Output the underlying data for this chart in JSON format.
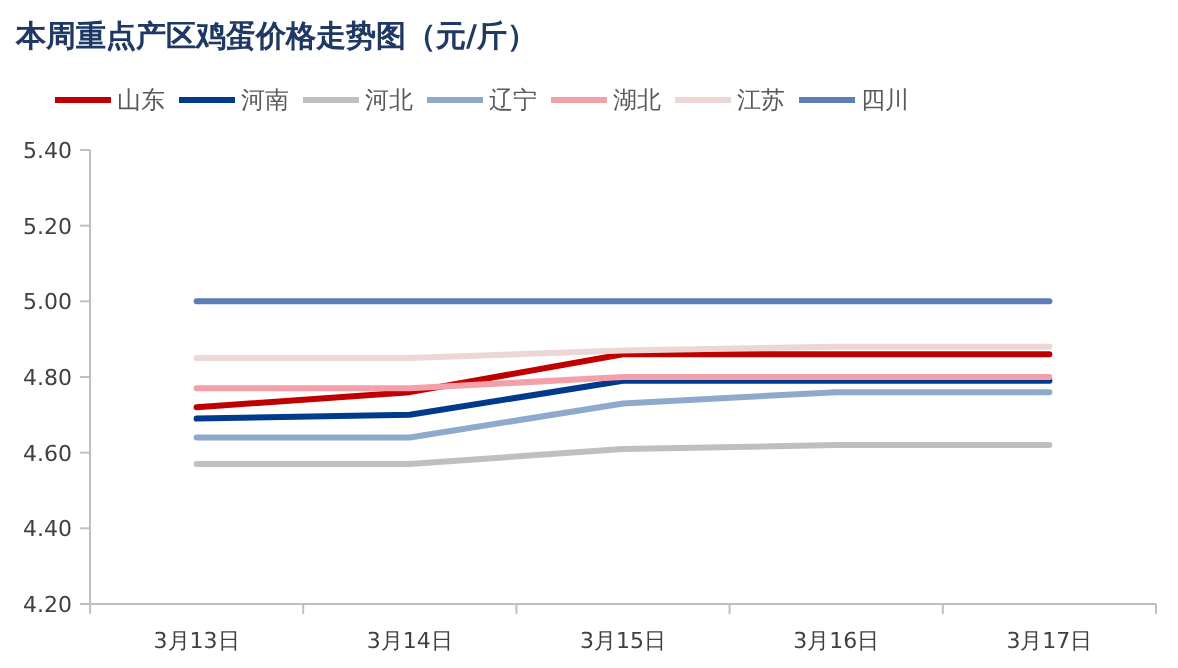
{
  "chart_data": {
    "type": "line",
    "title": "本周重点产区鸡蛋价格走势图（元/斤）",
    "categories": [
      "3月13日",
      "3月14日",
      "3月15日",
      "3月16日",
      "3月17日"
    ],
    "series": [
      {
        "name": "山东",
        "color": "#c00000",
        "values": [
          4.72,
          4.76,
          4.86,
          4.86,
          4.86
        ]
      },
      {
        "name": "河南",
        "color": "#003a8c",
        "values": [
          4.69,
          4.7,
          4.79,
          4.79,
          4.79
        ]
      },
      {
        "name": "河北",
        "color": "#bfbfbf",
        "values": [
          4.57,
          4.57,
          4.61,
          4.62,
          4.62
        ]
      },
      {
        "name": "辽宁",
        "color": "#8da9cc",
        "values": [
          4.64,
          4.64,
          4.73,
          4.76,
          4.76
        ]
      },
      {
        "name": "湖北",
        "color": "#f4a0aa",
        "values": [
          4.77,
          4.77,
          4.8,
          4.8,
          4.8
        ]
      },
      {
        "name": "江苏",
        "color": "#ecd6d6",
        "values": [
          4.85,
          4.85,
          4.87,
          4.88,
          4.88
        ]
      },
      {
        "name": "四川",
        "color": "#5b7fb5",
        "values": [
          5.0,
          5.0,
          5.0,
          5.0,
          5.0
        ]
      }
    ],
    "ylim": [
      4.2,
      5.4
    ],
    "yticks": [
      {
        "value": 4.2,
        "label": "4.20"
      },
      {
        "value": 4.4,
        "label": "4.40"
      },
      {
        "value": 4.6,
        "label": "4.60"
      },
      {
        "value": 4.8,
        "label": "4.80"
      },
      {
        "value": 5.0,
        "label": "5.00"
      },
      {
        "value": 5.2,
        "label": "5.20"
      },
      {
        "value": 5.4,
        "label": "5.40"
      }
    ],
    "legend": "top",
    "grid": false,
    "marker": "none",
    "line_style": "solid"
  }
}
